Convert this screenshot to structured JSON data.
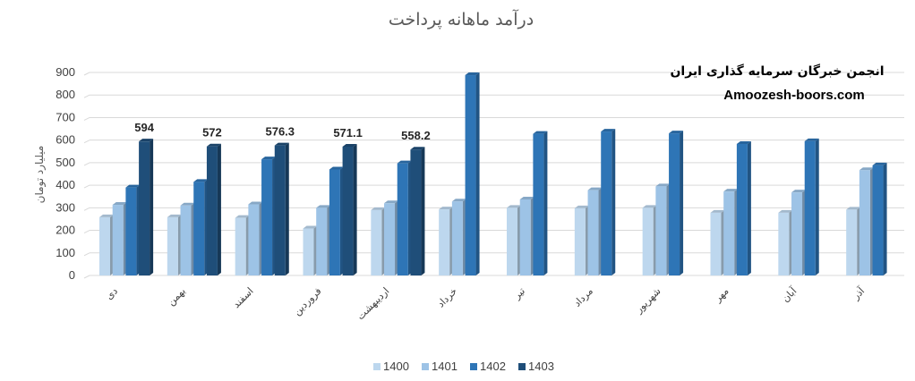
{
  "chart_data": {
    "type": "bar",
    "title": "درآمد ماهانه پرداخت",
    "ylabel": "میلیارد تومان",
    "xlabel": "",
    "ylim": [
      0,
      900
    ],
    "yticks": [
      "0",
      "100",
      "200",
      "300",
      "400",
      "500",
      "600",
      "700",
      "800",
      "900"
    ],
    "grid": true,
    "legend_position": "bottom",
    "style": "3d-clustered-column",
    "categories": [
      "دی",
      "بهمن",
      "اسفند",
      "فروردین",
      "اردیبهشت",
      "خرداد",
      "تیر",
      "مرداد",
      "شهریور",
      "مهر",
      "آبان",
      "آذر"
    ],
    "series": [
      {
        "name": "1400",
        "color": "#bdd7ee",
        "values": [
          258,
          258,
          255,
          208,
          290,
          293,
          300,
          298,
          300,
          278,
          278,
          292
        ]
      },
      {
        "name": "1401",
        "color": "#9dc3e6",
        "values": [
          313,
          310,
          315,
          300,
          320,
          328,
          337,
          378,
          395,
          372,
          368,
          467
        ]
      },
      {
        "name": "1402",
        "color": "#2e75b6",
        "values": [
          390,
          415,
          515,
          470,
          497,
          888,
          628,
          638,
          630,
          583,
          595,
          488
        ]
      },
      {
        "name": "1403",
        "color": "#1f4e79",
        "values": [
          594,
          572,
          576.3,
          571.1,
          558.2,
          null,
          null,
          null,
          null,
          null,
          null,
          null
        ]
      }
    ],
    "data_labels": [
      {
        "series": "1403",
        "category_index": 0,
        "text": "594"
      },
      {
        "series": "1403",
        "category_index": 1,
        "text": "572"
      },
      {
        "series": "1403",
        "category_index": 2,
        "text": "576.3"
      },
      {
        "series": "1403",
        "category_index": 3,
        "text": "571.1"
      },
      {
        "series": "1403",
        "category_index": 4,
        "text": "558.2"
      }
    ]
  },
  "watermark": {
    "line1": "انجمن خبرگان سرمایه گذاری ایران",
    "line2": "Amoozesh-boors.com"
  }
}
